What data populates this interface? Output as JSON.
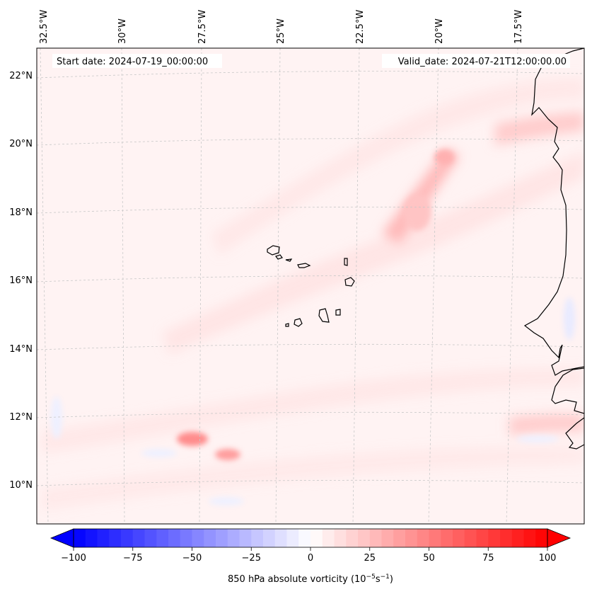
{
  "map": {
    "start_date": "Start date: 2024-07-19_00:00:00",
    "valid_date": "Valid_date: 2024-07-21T12:00:00.00",
    "lon_labels": [
      "32.5°W",
      "30°W",
      "27.5°W",
      "25°W",
      "22.5°W",
      "20°W",
      "17.5°W"
    ],
    "lat_labels": [
      "22°N",
      "20°N",
      "18°N",
      "16°N",
      "14°N",
      "12°N",
      "10°N"
    ],
    "extent": {
      "lon_min": -33.0,
      "lon_max": -15.8,
      "lat_min": 8.9,
      "lat_max": 22.8
    },
    "field": "850 hPa absolute vorticity",
    "features": [
      {
        "name": "vorticity-max-cape-verde-south",
        "lon": -27.0,
        "lat": 11.3,
        "value": 40
      },
      {
        "name": "vorticity-max-cape-verde-south-2",
        "lon": -25.9,
        "lat": 10.9,
        "value": 30
      },
      {
        "name": "vorticity-band-northeast",
        "lon": -19.8,
        "lat": 19.6,
        "value": 25
      }
    ]
  },
  "colorbar": {
    "label": "850 hPa absolute vorticity (10",
    "label_exp1": "−5",
    "label_mid": "s",
    "label_exp2": "−1",
    "label_end": ")",
    "min": -100,
    "max": 100,
    "ticks": [
      "−100",
      "−75",
      "−50",
      "−25",
      "0",
      "25",
      "50",
      "75",
      "100"
    ],
    "tick_values": [
      -100,
      -75,
      -50,
      -25,
      0,
      25,
      50,
      75,
      100
    ],
    "low_color": "#0000ff",
    "mid_color": "#ffffff",
    "high_color": "#ff0000",
    "levels": 40
  }
}
